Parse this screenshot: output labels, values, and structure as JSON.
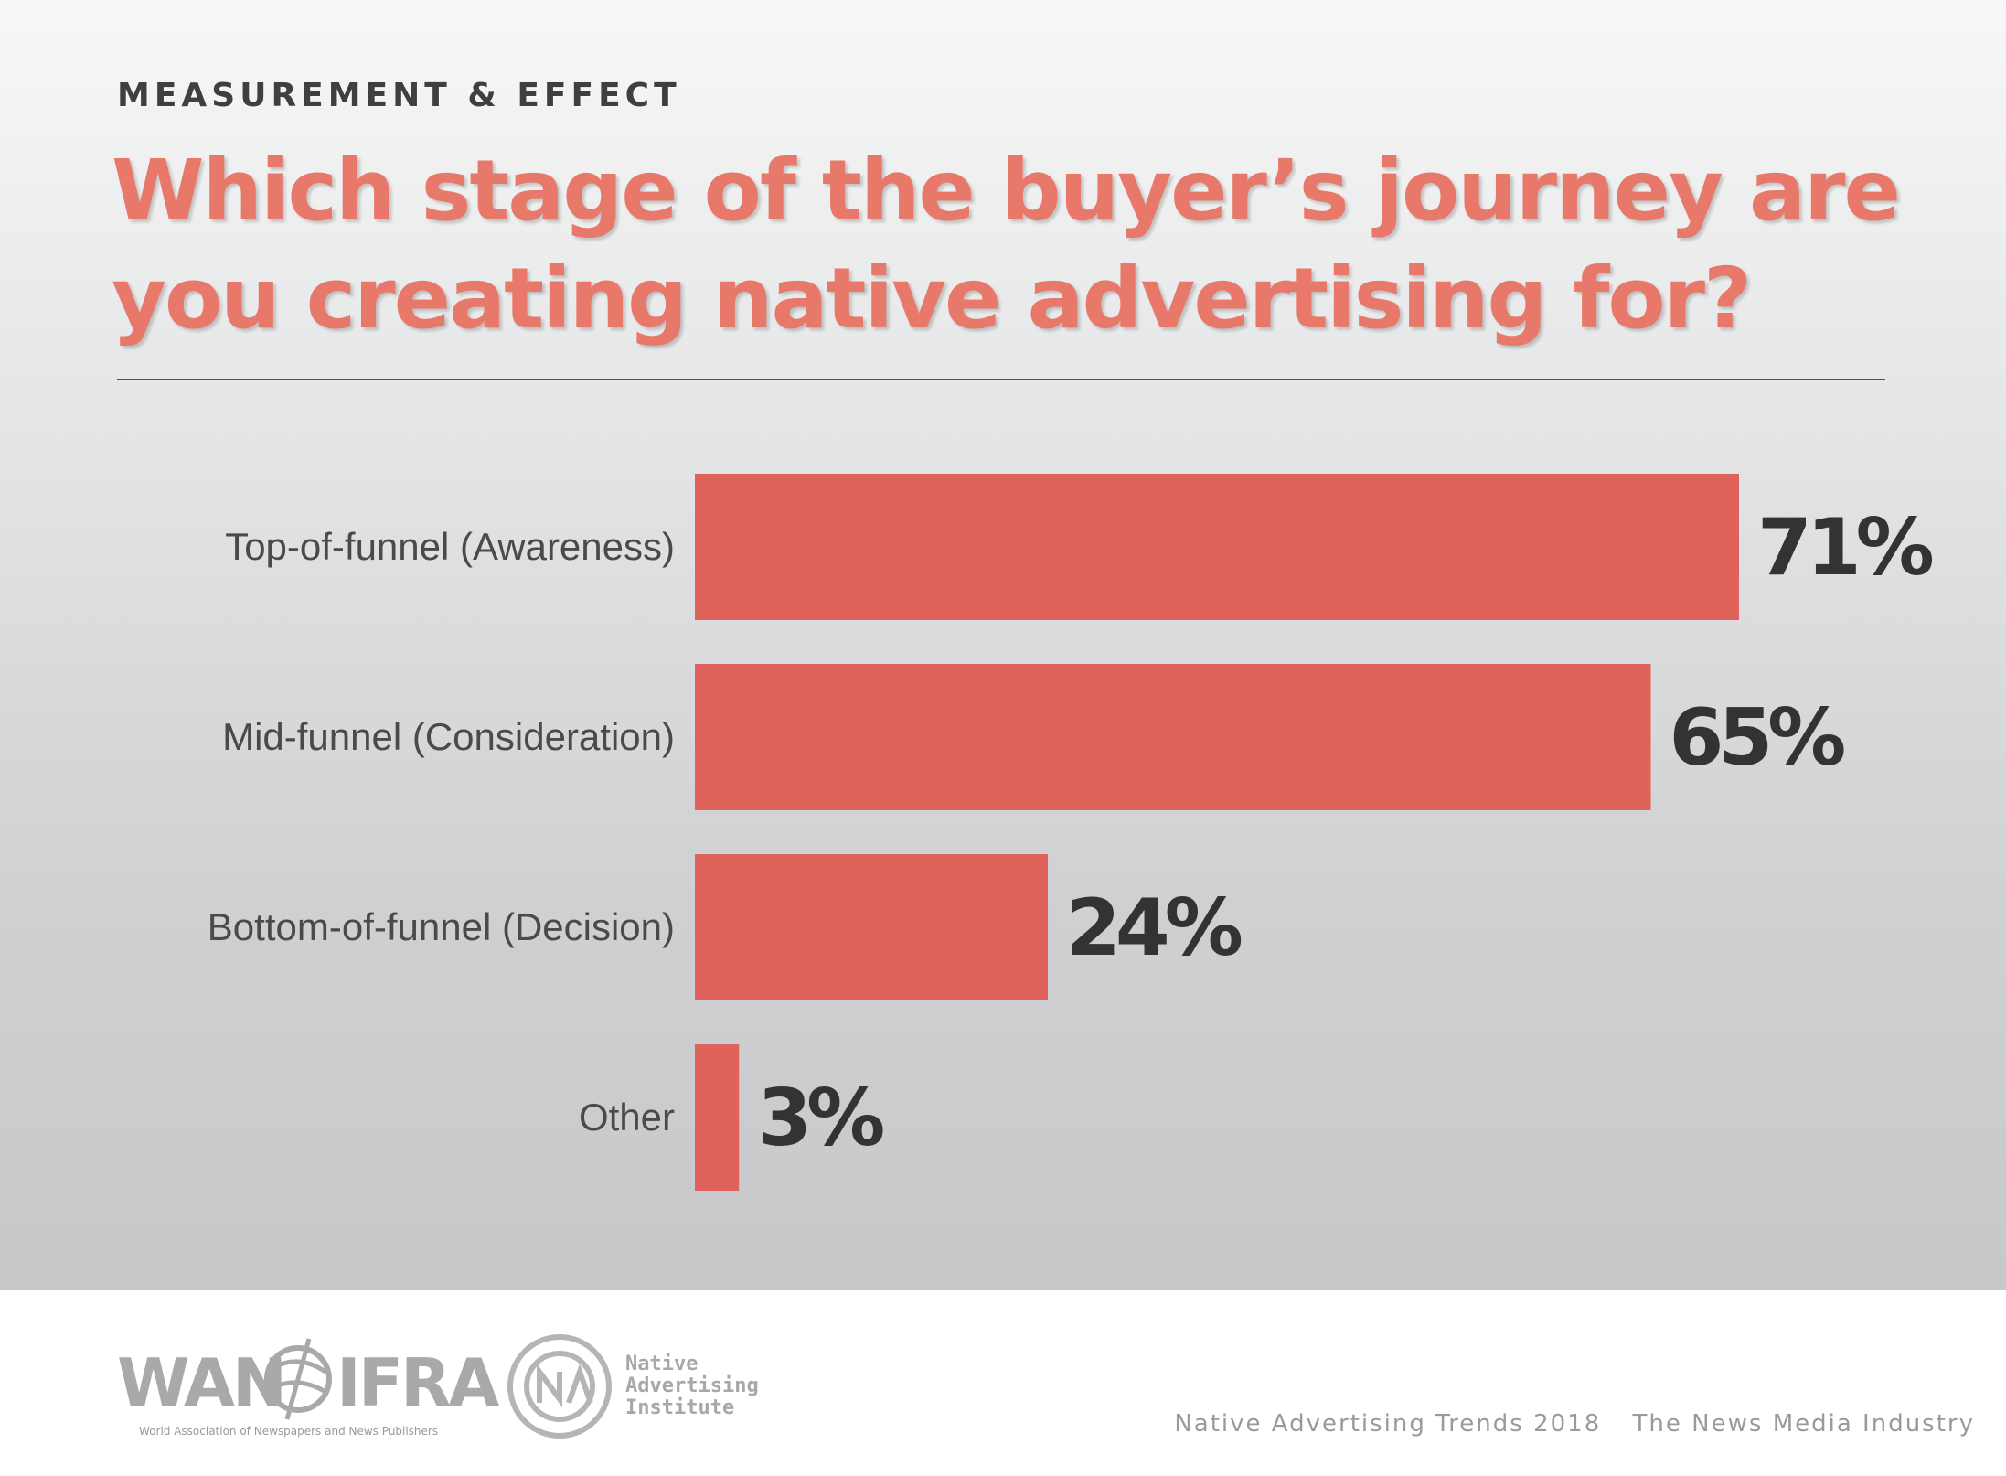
{
  "header": {
    "kicker": "MEASUREMENT & EFFECT",
    "title": "Which stage of the buyer’s journey are you creating native advertising for?"
  },
  "colors": {
    "bar": "#e0635b",
    "title": "#e8796a",
    "value_text": "#333333",
    "label_text": "#4a4a4a"
  },
  "chart_data": {
    "type": "bar",
    "orientation": "horizontal",
    "categories": [
      "Top-of-funnel (Awareness)",
      "Mid-funnel (Consideration)",
      "Bottom-of-funnel (Decision)",
      "Other"
    ],
    "values": [
      71,
      65,
      24,
      3
    ],
    "value_labels": [
      "71%",
      "65%",
      "24%",
      "3%"
    ],
    "xlim": [
      0,
      71
    ],
    "grid": false,
    "legend": "none"
  },
  "footer": {
    "wan_logo_text": "WAN IFRA",
    "wan_tagline": "World Association of Newspapers and News Publishers",
    "nai_lines": [
      "Native",
      "Advertising",
      "Institute"
    ],
    "source_left": "Native Advertising Trends 2018",
    "source_right": "The News Media Industry"
  }
}
